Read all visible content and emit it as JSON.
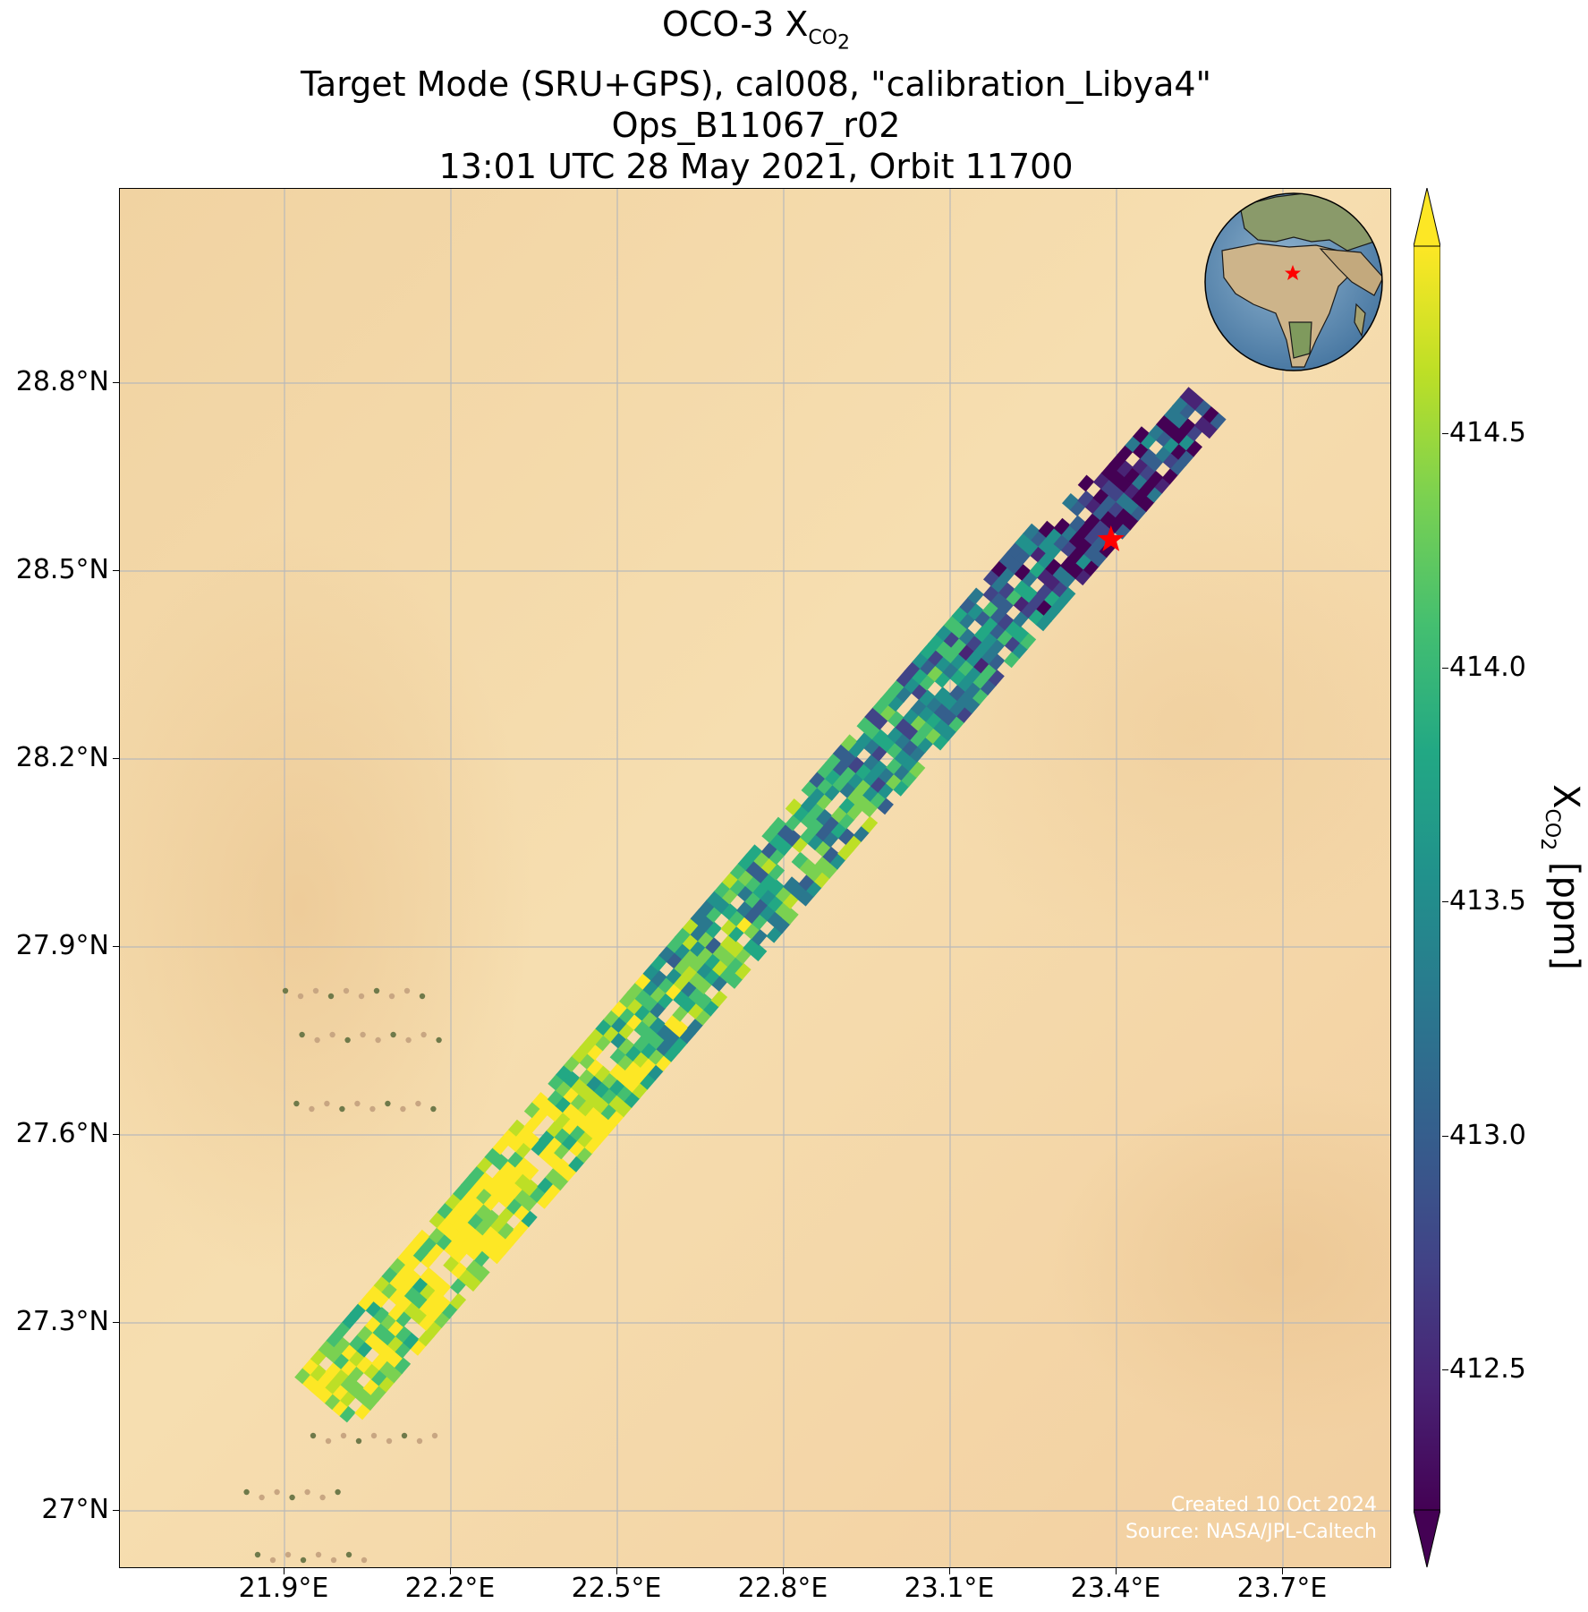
{
  "title": {
    "line1_main": "OCO-3 X",
    "line1_sub": "CO",
    "line1_subsub": "2",
    "line2": "Target Mode (SRU+GPS), cal008, \"calibration_Libya4\"",
    "line3": "Ops_B11067_r02",
    "line4": "13:01 UTC 28 May 2021, Orbit 11700"
  },
  "map": {
    "basemap": "desert satellite imagery",
    "gridlines": true,
    "lat_ticks": [
      "28.8°N",
      "28.5°N",
      "28.2°N",
      "27.9°N",
      "27.6°N",
      "27.3°N",
      "27°N"
    ],
    "lon_ticks": [
      "21.9°E",
      "22.2°E",
      "22.5°E",
      "22.8°E",
      "23.1°E",
      "23.4°E",
      "23.7°E"
    ],
    "target_marker": {
      "icon": "red-star-icon",
      "lon": 23.39,
      "lat": 28.55,
      "color": "#ff0000"
    },
    "credit_line1": "Created 10 Oct 2024",
    "credit_line2": "Source: NASA/JPL-Caltech",
    "inset_globe": {
      "icon": "globe-icon",
      "marker": "red-star-icon"
    }
  },
  "colorbar": {
    "label_main": "X",
    "label_sub": "CO",
    "label_subsub": "2",
    "label_unit": " [ppm]",
    "ticks": [
      "414.5",
      "414.0",
      "413.5",
      "413.0",
      "412.5"
    ],
    "colormap": "viridis",
    "extend": "both",
    "range": [
      412.2,
      414.9
    ]
  },
  "chart_data": {
    "type": "scatter",
    "title": "OCO-3 XCO2 Target Mode (SRU+GPS), cal008, \"calibration_Libya4\" Ops_B11067_r02 13:01 UTC 28 May 2021, Orbit 11700",
    "xlabel": "",
    "ylabel": "",
    "colorbar_label": "XCO2 [ppm]",
    "xlim": [
      21.6,
      23.9
    ],
    "ylim": [
      26.85,
      29.1
    ],
    "swath": {
      "start": [
        21.98,
        27.18
      ],
      "end": [
        23.55,
        28.79
      ],
      "xco2_along_track": [
        {
          "lat": 27.2,
          "xco2": 414.5
        },
        {
          "lat": 27.4,
          "xco2": 414.7
        },
        {
          "lat": 27.6,
          "xco2": 414.6
        },
        {
          "lat": 27.8,
          "xco2": 414.0
        },
        {
          "lat": 28.0,
          "xco2": 413.9
        },
        {
          "lat": 28.2,
          "xco2": 413.6
        },
        {
          "lat": 28.4,
          "xco2": 413.4
        },
        {
          "lat": 28.6,
          "xco2": 412.6
        },
        {
          "lat": 28.75,
          "xco2": 412.8
        }
      ]
    },
    "grid": true
  }
}
